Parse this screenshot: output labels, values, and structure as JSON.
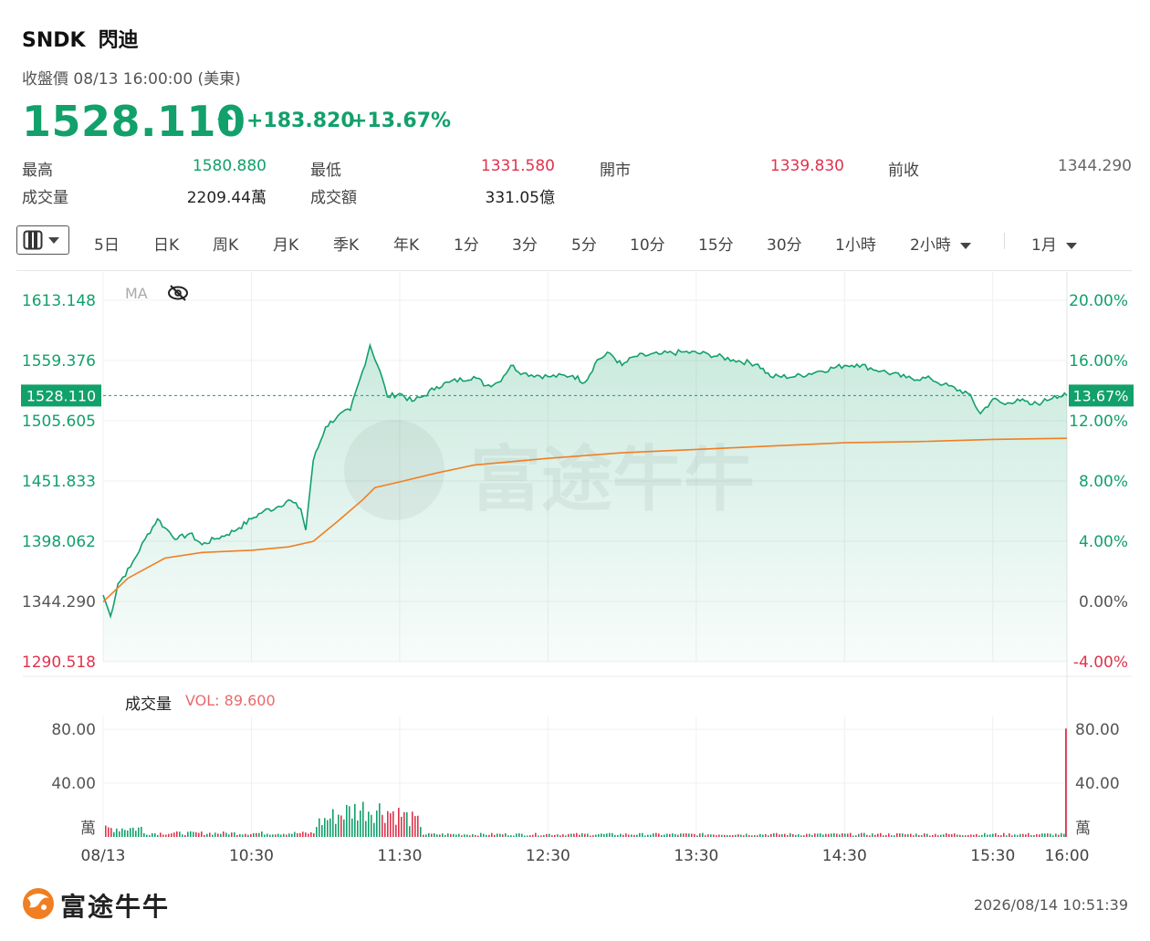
{
  "header": {
    "ticker": "SNDK",
    "name": "閃迪",
    "close_label": "收盤價 08/13 16:00:00 (美東)",
    "price": "1528.110",
    "change": "+183.820",
    "change_pct": "+13.67%"
  },
  "stats": [
    {
      "label": "最高",
      "value": "1580.880"
    },
    {
      "label": "最低",
      "value": "1331.580"
    },
    {
      "label": "開市",
      "value": "1339.830"
    },
    {
      "label": "前收",
      "value": "1344.290"
    },
    {
      "label": "成交量",
      "value": "2209.44萬"
    },
    {
      "label": "成交額",
      "value": "331.05億"
    }
  ],
  "toolbar": {
    "items": [
      "5日",
      "日K",
      "周K",
      "月K",
      "季K",
      "年K",
      "1分",
      "3分",
      "5分",
      "10分",
      "15分",
      "30分",
      "1小時",
      "2小時",
      "1月"
    ]
  },
  "watermark": "富途牛牛",
  "colors": {
    "up": "#12a06b",
    "down": "#e0334c",
    "avg_line": "#f07f23"
  },
  "chart_data": {
    "type": "line",
    "series": [],
    "prev_close": 1344.29,
    "last_price": 1528.11,
    "price_ticks": [
      "1613.148",
      "1559.376",
      "1505.605",
      "1451.833",
      "1398.062",
      "1344.290",
      "1290.518"
    ],
    "pct_ticks": [
      "20.00%",
      "16.00%",
      "12.00%",
      "8.00%",
      "4.00%",
      "0.00%",
      "-4.00%"
    ],
    "price_tag": "1528.110",
    "pct_tag": "13.67%",
    "ylim": [
      1290.518,
      1613.148
    ],
    "x_ticks": [
      "08/13",
      "10:30",
      "11:30",
      "12:30",
      "13:30",
      "14:30",
      "15:30",
      "16:00"
    ],
    "price_points": [
      [
        "09:30",
        1350
      ],
      [
        "09:33",
        1331
      ],
      [
        "09:36",
        1360
      ],
      [
        "09:41",
        1375
      ],
      [
        "09:47",
        1400
      ],
      [
        "09:52",
        1418
      ],
      [
        "09:55",
        1410
      ],
      [
        "10:00",
        1400
      ],
      [
        "10:05",
        1405
      ],
      [
        "10:10",
        1395
      ],
      [
        "10:15",
        1400
      ],
      [
        "10:20",
        1404
      ],
      [
        "10:25",
        1410
      ],
      [
        "10:30",
        1418
      ],
      [
        "10:35",
        1425
      ],
      [
        "10:40",
        1428
      ],
      [
        "10:45",
        1435
      ],
      [
        "10:50",
        1427
      ],
      [
        "10:52",
        1408
      ],
      [
        "10:55",
        1470
      ],
      [
        "11:00",
        1500
      ],
      [
        "11:05",
        1510
      ],
      [
        "11:10",
        1515
      ],
      [
        "11:15",
        1550
      ],
      [
        "11:18",
        1573
      ],
      [
        "11:22",
        1550
      ],
      [
        "11:25",
        1527
      ],
      [
        "11:30",
        1530
      ],
      [
        "11:35",
        1523
      ],
      [
        "11:40",
        1528
      ],
      [
        "11:45",
        1536
      ],
      [
        "11:50",
        1540
      ],
      [
        "12:00",
        1545
      ],
      [
        "12:05",
        1537
      ],
      [
        "12:10",
        1540
      ],
      [
        "12:15",
        1555
      ],
      [
        "12:20",
        1548
      ],
      [
        "12:30",
        1545
      ],
      [
        "12:40",
        1546
      ],
      [
        "12:45",
        1540
      ],
      [
        "12:50",
        1560
      ],
      [
        "12:55",
        1566
      ],
      [
        "13:00",
        1555
      ],
      [
        "13:05",
        1563
      ],
      [
        "13:15",
        1565
      ],
      [
        "13:25",
        1567
      ],
      [
        "13:35",
        1565
      ],
      [
        "13:45",
        1560
      ],
      [
        "13:55",
        1556
      ],
      [
        "14:00",
        1545
      ],
      [
        "14:10",
        1545
      ],
      [
        "14:20",
        1550
      ],
      [
        "14:30",
        1555
      ],
      [
        "14:35",
        1556
      ],
      [
        "14:45",
        1550
      ],
      [
        "14:55",
        1544
      ],
      [
        "15:05",
        1543
      ],
      [
        "15:10",
        1538
      ],
      [
        "15:20",
        1530
      ],
      [
        "15:25",
        1512
      ],
      [
        "15:30",
        1525
      ],
      [
        "15:35",
        1520
      ],
      [
        "15:40",
        1525
      ],
      [
        "15:45",
        1520
      ],
      [
        "15:50",
        1522
      ],
      [
        "15:55",
        1528
      ],
      [
        "16:00",
        1528
      ]
    ],
    "avg_points": [
      [
        "09:30",
        1344
      ],
      [
        "09:40",
        1365
      ],
      [
        "09:55",
        1383
      ],
      [
        "10:10",
        1388
      ],
      [
        "10:30",
        1390
      ],
      [
        "10:45",
        1393
      ],
      [
        "10:55",
        1398
      ],
      [
        "11:05",
        1416
      ],
      [
        "11:15",
        1435
      ],
      [
        "11:20",
        1446
      ],
      [
        "11:30",
        1451
      ],
      [
        "11:45",
        1459
      ],
      [
        "12:00",
        1466
      ],
      [
        "12:30",
        1472
      ],
      [
        "13:00",
        1477
      ],
      [
        "13:30",
        1480
      ],
      [
        "14:00",
        1483
      ],
      [
        "14:30",
        1486
      ],
      [
        "15:00",
        1487
      ],
      [
        "15:30",
        1489
      ],
      [
        "16:00",
        1490
      ]
    ],
    "volume_label": "成交量",
    "vol_readout": "VOL: 89.600",
    "volume_ticks": [
      "80.00",
      "40.00"
    ],
    "volume_unit": "萬",
    "volume_ylim": [
      0,
      100
    ]
  }
}
